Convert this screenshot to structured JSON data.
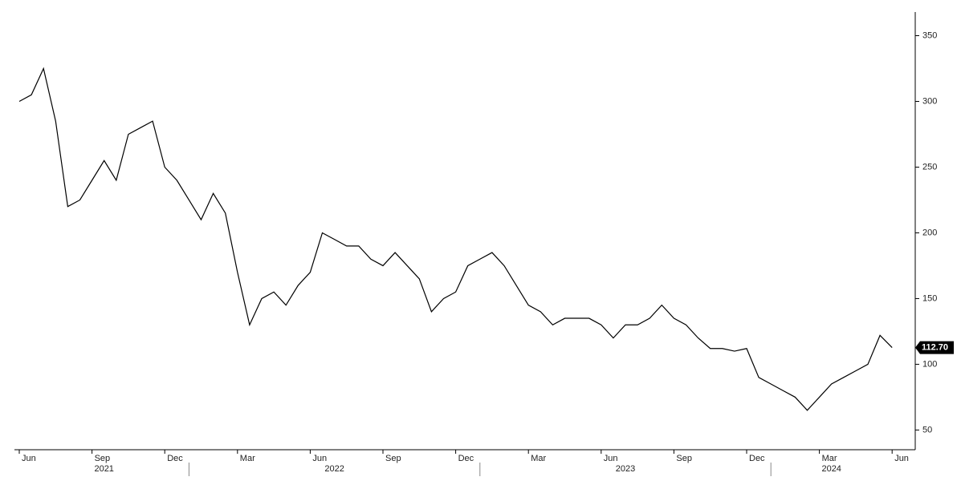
{
  "chart_data": {
    "type": "line",
    "color": "#000000",
    "categories": [
      "Jun",
      null,
      null,
      null,
      null,
      null,
      "Sep",
      null,
      null,
      null,
      null,
      null,
      "Dec",
      null,
      null,
      null,
      null,
      null,
      "Mar",
      null,
      null,
      null,
      null,
      null,
      "Jun",
      null,
      null,
      null,
      null,
      null,
      "Sep",
      null,
      null,
      null,
      null,
      null,
      "Dec",
      null,
      null,
      null,
      null,
      null,
      "Mar",
      null,
      null,
      null,
      null,
      null,
      "Jun",
      null,
      null,
      null,
      null,
      null,
      "Sep",
      null,
      null,
      null,
      null,
      null,
      "Dec",
      null,
      null,
      null,
      null,
      null,
      "Mar",
      null,
      null,
      null,
      null,
      null,
      "Jun"
    ],
    "values": [
      300,
      305,
      325,
      285,
      220,
      225,
      240,
      255,
      240,
      275,
      280,
      285,
      250,
      240,
      225,
      210,
      230,
      215,
      170,
      130,
      150,
      155,
      145,
      160,
      170,
      200,
      195,
      190,
      190,
      180,
      175,
      185,
      175,
      165,
      140,
      150,
      155,
      175,
      180,
      185,
      175,
      160,
      145,
      140,
      130,
      135,
      135,
      135,
      130,
      120,
      130,
      130,
      135,
      145,
      135,
      130,
      120,
      112,
      112,
      110,
      112,
      90,
      85,
      80,
      75,
      65,
      75,
      85,
      90,
      95,
      100,
      122,
      112.7
    ],
    "value_labels": [
      null,
      null,
      null,
      null,
      null,
      null,
      null,
      null,
      null,
      null,
      null,
      null,
      null,
      null,
      null,
      null,
      null,
      null,
      null,
      null,
      null,
      null,
      null,
      null,
      null,
      null,
      null,
      null,
      null,
      null,
      null,
      null,
      null,
      null,
      null,
      null,
      null,
      null,
      null,
      null,
      null,
      null,
      null,
      null,
      null,
      null,
      null,
      null,
      null,
      null,
      null,
      null,
      null,
      null,
      null,
      null,
      null,
      null,
      null,
      null,
      null,
      null,
      null,
      null,
      null,
      null,
      null,
      null,
      null,
      null,
      null,
      null,
      "112.70"
    ],
    "years": [
      "2021",
      "2022",
      "2023",
      "2024"
    ],
    "ylim": [
      35,
      368
    ],
    "yticks": [
      50,
      100,
      150,
      200,
      250,
      300,
      350
    ]
  }
}
